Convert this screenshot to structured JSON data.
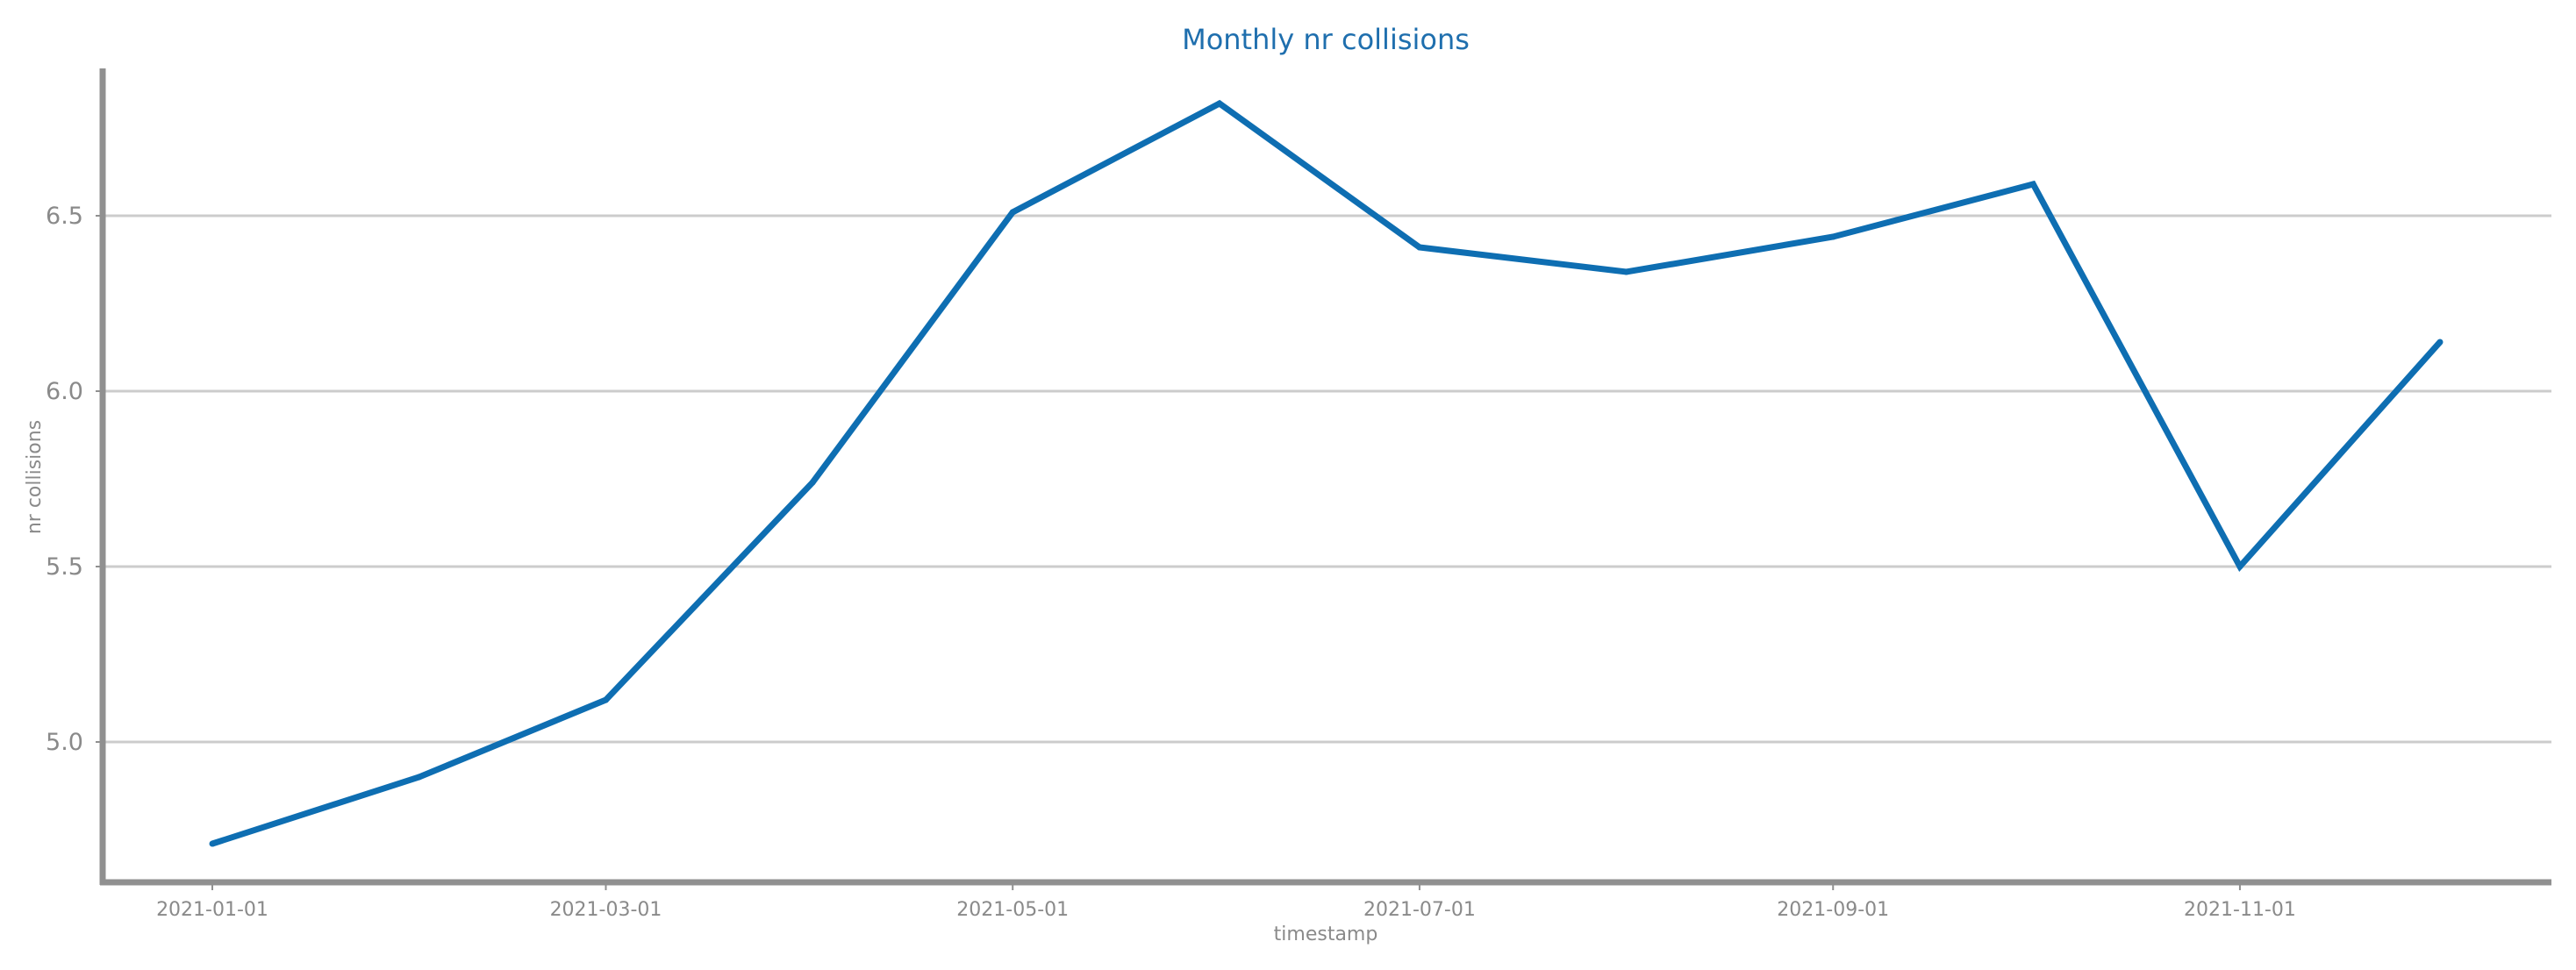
{
  "chart_data": {
    "type": "line",
    "title": "Monthly nr collisions",
    "xlabel": "timestamp",
    "ylabel": "nr collisions",
    "x": [
      "2021-01-01",
      "2021-02-01",
      "2021-03-01",
      "2021-04-01",
      "2021-05-01",
      "2021-06-01",
      "2021-07-01",
      "2021-08-01",
      "2021-09-01",
      "2021-10-01",
      "2021-11-01",
      "2021-12-01"
    ],
    "x_tick_labels": [
      "2021-01-01",
      "2021-03-01",
      "2021-05-01",
      "2021-07-01",
      "2021-09-01",
      "2021-11-01"
    ],
    "y_ticks": [
      5.0,
      5.5,
      6.0,
      6.5
    ],
    "y_tick_labels": [
      "5.0",
      "5.5",
      "6.0",
      "6.5"
    ],
    "ylim": [
      4.6,
      6.92
    ],
    "grid": "horizontal",
    "series": [
      {
        "values": [
          4.71,
          4.9,
          5.12,
          5.74,
          6.51,
          6.82,
          6.41,
          6.34,
          6.44,
          6.59,
          5.5,
          6.14
        ]
      }
    ]
  },
  "colors": {
    "title": "#1f6fae",
    "line": "#0e6eb2",
    "axis": "#909090",
    "grid": "#cccccc",
    "text": "#8a8a8a"
  }
}
